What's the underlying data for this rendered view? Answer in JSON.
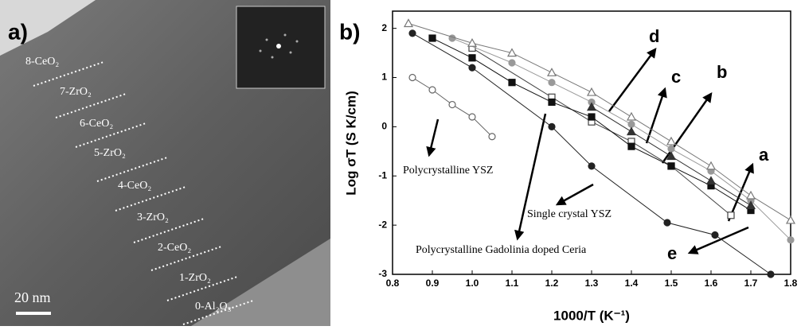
{
  "image_panel": {
    "label": "a)",
    "scale_bar": "20 nm",
    "layers": [
      "8-CeO₂",
      "7-ZrO₂",
      "6-CeO₂",
      "5-ZrO₂",
      "4-CeO₂",
      "3-ZrO₂",
      "2-CeO₂",
      "1-ZrO₂",
      "0-Al₂O₃"
    ]
  },
  "chart_data": {
    "type": "scatter",
    "panel_label": "b)",
    "x_label": "1000/T (K⁻¹)",
    "y_label": "Log σT (S K/cm)",
    "xlim": [
      0.8,
      1.8
    ],
    "ylim": [
      -3,
      2.35
    ],
    "xticks": [
      0.8,
      0.9,
      {
        "value": 1,
        "label": "1.0"
      },
      1.1,
      1.2,
      1.3,
      1.4,
      1.5,
      1.6,
      1.7,
      1.8
    ],
    "yticks": [
      -3,
      -2,
      -1,
      0,
      1,
      2
    ],
    "annotations": [
      "d",
      "c",
      "b",
      "a",
      "e",
      "Polycrystalline YSZ",
      "Single crystal YSZ",
      "Polycrystalline Gadolinia doped Ceria"
    ],
    "series": [
      {
        "marker": "circle-open",
        "color": "#666666",
        "x": [
          0.85,
          0.9,
          0.95,
          1.0,
          1.05
        ],
        "values": [
          1.0,
          0.75,
          0.45,
          0.2,
          -0.2
        ]
      },
      {
        "marker": "circle",
        "color": "#222222",
        "x": [
          0.85,
          1.0,
          1.2,
          1.3,
          1.49,
          1.61,
          1.75
        ],
        "values": [
          1.9,
          1.2,
          0.0,
          -0.8,
          -1.95,
          -2.2,
          -3.0
        ]
      },
      {
        "marker": "square-open",
        "color": "#444444",
        "x": [
          1.0,
          1.2,
          1.3,
          1.4,
          1.5,
          1.65
        ],
        "values": [
          1.6,
          0.6,
          0.1,
          -0.3,
          -0.8,
          -1.8
        ]
      },
      {
        "marker": "square",
        "color": "#111111",
        "x": [
          0.9,
          1.0,
          1.1,
          1.2,
          1.3,
          1.4,
          1.5,
          1.6,
          1.7
        ],
        "values": [
          1.8,
          1.4,
          0.9,
          0.5,
          0.2,
          -0.4,
          -0.8,
          -1.2,
          -1.7
        ]
      },
      {
        "marker": "circle",
        "color": "#999999",
        "x": [
          0.95,
          1.1,
          1.2,
          1.3,
          1.4,
          1.5,
          1.6,
          1.7,
          1.8
        ],
        "values": [
          1.8,
          1.3,
          0.9,
          0.5,
          0.05,
          -0.45,
          -0.9,
          -1.5,
          -2.3
        ]
      },
      {
        "marker": "triangle",
        "color": "#333333",
        "x": [
          1.3,
          1.4,
          1.5,
          1.6,
          1.7
        ],
        "values": [
          0.4,
          -0.1,
          -0.6,
          -1.1,
          -1.6
        ]
      },
      {
        "marker": "triangle-open",
        "color": "#777777",
        "x": [
          0.84,
          1.0,
          1.1,
          1.2,
          1.3,
          1.4,
          1.5,
          1.6,
          1.7,
          1.8
        ],
        "values": [
          2.1,
          1.7,
          1.5,
          1.1,
          0.7,
          0.2,
          -0.3,
          -0.8,
          -1.4,
          -1.9
        ]
      }
    ]
  }
}
